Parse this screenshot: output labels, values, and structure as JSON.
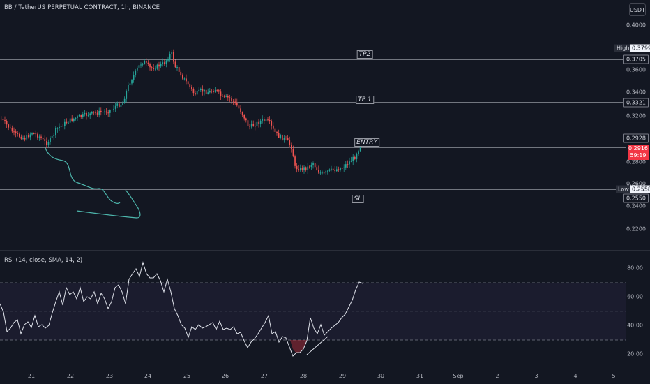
{
  "header": {
    "title": "BB / TetherUS PERPETUAL CONTRACT, 1h, BINANCE",
    "currency_label": "USDT"
  },
  "price_axis": {
    "ticks": [
      "0.4000",
      "0.3600",
      "0.3400",
      "0.3200",
      "0.2800",
      "0.2600",
      "0.2400",
      "0.2200"
    ],
    "high_label": "High",
    "high_value": "0.3799",
    "low_label": "Low",
    "low_value": "0.2558",
    "current_price": "0.2916",
    "countdown": "59:19"
  },
  "levels": [
    {
      "name": "TP2",
      "price": "0.3705"
    },
    {
      "name": "TP 1",
      "price": "0.3321"
    },
    {
      "name": "ENTRY",
      "price": "0.2928"
    },
    {
      "name": "SL",
      "price": "0.2550"
    }
  ],
  "rsi": {
    "title": "RSI (14, close, SMA, 14, 2)",
    "ticks": [
      "80.00",
      "60.00",
      "40.00",
      "20.00"
    ],
    "upper_band": 70,
    "middle_band": 50,
    "lower_band": 30
  },
  "time_axis": {
    "ticks": [
      "21",
      "22",
      "23",
      "24",
      "25",
      "26",
      "27",
      "28",
      "29",
      "30",
      "31",
      "Sep",
      "2",
      "3",
      "4",
      "5"
    ]
  },
  "colors": {
    "background": "#131722",
    "up": "#26a69a",
    "down": "#ef5350",
    "rsi_band": "#7e57c2",
    "drawing": "#4db6ac"
  }
}
